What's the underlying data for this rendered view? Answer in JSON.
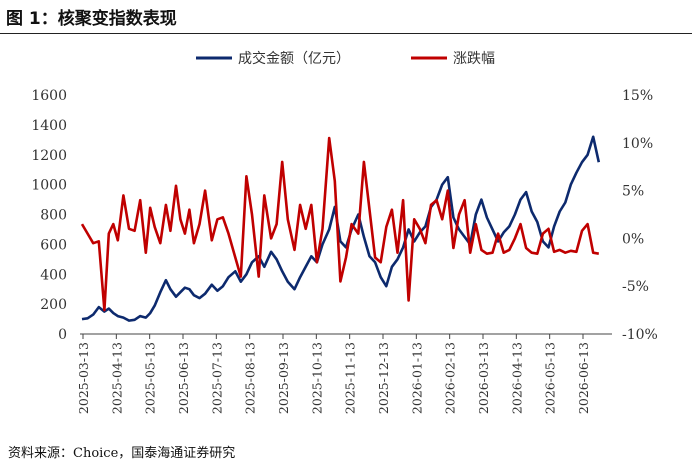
{
  "figure": {
    "title": "图 1：核聚变指数表现",
    "source": "资料来源：Choice，国泰海通证券研究"
  },
  "colors": {
    "amount": "#0d2a6e",
    "change": "#c00000",
    "axis": "#444444",
    "text": "#333333"
  },
  "chart_data": {
    "type": "line",
    "legend": {
      "placement": "top-center",
      "entries": [
        "成交金额（亿元）",
        "涨跌幅"
      ]
    },
    "x_ticks": [
      "2025-03-13",
      "2025-04-13",
      "2025-05-13",
      "2025-06-13",
      "2025-07-13",
      "2025-08-13",
      "2025-09-13",
      "2025-10-13",
      "2025-11-13",
      "2025-12-13",
      "2026-01-13",
      "2026-02-13",
      "2026-03-13",
      "2026-04-13",
      "2026-05-13",
      "2026-06-13"
    ],
    "y_left": {
      "ticks": [
        "0",
        "200",
        "400",
        "600",
        "800",
        "1000",
        "1200",
        "1400",
        "1600"
      ],
      "min": 0,
      "max": 1600
    },
    "y_right": {
      "ticks": [
        "-10%",
        "-5%",
        "0%",
        "5%",
        "10%",
        "15%"
      ],
      "min": -10,
      "max": 15
    },
    "grid": false,
    "series": [
      {
        "name": "成交金额（亿元）",
        "axis": "left",
        "color": "#0d2a6e",
        "x": [
          0,
          5,
          10,
          15,
          20,
          24,
          28,
          32,
          37,
          42,
          47,
          52,
          57,
          61,
          65,
          70,
          75,
          79,
          84,
          88,
          92,
          96,
          100,
          105,
          110,
          116,
          121,
          126,
          131,
          137,
          142,
          147,
          152,
          158,
          163,
          169,
          174,
          179,
          184,
          190,
          195,
          200,
          205,
          210,
          215,
          221,
          226,
          231,
          236,
          241,
          247,
          252,
          257,
          262,
          267,
          272,
          277,
          282,
          287,
          292,
          297,
          302,
          307,
          312,
          317,
          322,
          327,
          332,
          337,
          342,
          347,
          352,
          357,
          362,
          367,
          372,
          377,
          382,
          387,
          392,
          397,
          402,
          407,
          412,
          417,
          422,
          427,
          432,
          437,
          442,
          447,
          452,
          457,
          462
        ],
        "values": [
          100,
          105,
          130,
          180,
          150,
          170,
          140,
          120,
          110,
          90,
          95,
          120,
          110,
          140,
          190,
          280,
          360,
          300,
          250,
          280,
          310,
          300,
          260,
          240,
          270,
          330,
          290,
          320,
          380,
          420,
          350,
          400,
          480,
          520,
          450,
          550,
          500,
          420,
          350,
          300,
          380,
          450,
          520,
          480,
          600,
          700,
          850,
          620,
          580,
          700,
          800,
          650,
          520,
          480,
          380,
          320,
          450,
          500,
          580,
          700,
          620,
          680,
          720,
          850,
          900,
          1000,
          1050,
          780,
          700,
          650,
          600,
          800,
          900,
          780,
          700,
          620,
          680,
          720,
          800,
          900,
          950,
          820,
          750,
          620,
          580,
          720,
          820,
          880,
          1000,
          1080,
          1150,
          1200,
          1320,
          1150
        ]
      },
      {
        "name": "涨跌幅",
        "axis": "right",
        "color": "#c00000",
        "x": [
          0,
          5,
          10,
          15,
          20,
          24,
          28,
          32,
          37,
          42,
          47,
          52,
          57,
          61,
          65,
          70,
          75,
          79,
          84,
          88,
          92,
          96,
          100,
          105,
          110,
          116,
          121,
          126,
          131,
          137,
          142,
          147,
          152,
          158,
          163,
          169,
          174,
          179,
          184,
          190,
          195,
          200,
          205,
          210,
          215,
          221,
          226,
          231,
          236,
          241,
          247,
          252,
          257,
          262,
          267,
          272,
          277,
          282,
          287,
          292,
          297,
          302,
          307,
          312,
          317,
          322,
          327,
          332,
          337,
          342,
          347,
          352,
          357,
          362,
          367,
          372,
          377,
          382,
          387,
          392,
          397,
          402,
          407,
          412,
          417,
          422,
          427,
          432,
          437,
          442,
          447,
          452,
          457,
          462
        ],
        "values": [
          1.5,
          0.5,
          -0.5,
          -0.3,
          -7.5,
          0.5,
          1.5,
          -0.2,
          4.5,
          1.0,
          0.8,
          4.0,
          -1.5,
          3.2,
          1.2,
          -0.5,
          3.5,
          0.8,
          5.5,
          2.0,
          0.5,
          3.0,
          -0.5,
          1.5,
          5.0,
          -0.2,
          2.0,
          2.2,
          0.5,
          -2.0,
          -4.0,
          6.5,
          2.5,
          -4.0,
          4.5,
          0.0,
          1.5,
          8.0,
          2.0,
          -1.2,
          3.5,
          1.0,
          3.5,
          -2.5,
          1.0,
          10.5,
          6.0,
          -4.5,
          -2.0,
          1.5,
          0.5,
          8.0,
          3.0,
          -2.0,
          -2.5,
          1.2,
          3.0,
          -1.5,
          4.0,
          -6.5,
          2.0,
          1.0,
          -0.5,
          3.5,
          4.0,
          2.0,
          5.0,
          -1.0,
          2.5,
          4.0,
          -1.5,
          1.5,
          -1.2,
          -1.6,
          -1.5,
          0.5,
          -1.5,
          -1.2,
          0.0,
          1.5,
          -1.0,
          -1.5,
          -1.6,
          0.5,
          1.0,
          -1.4,
          -1.2,
          -1.5,
          -1.3,
          -1.4,
          0.8,
          1.5,
          -1.5,
          -1.6
        ]
      }
    ]
  }
}
